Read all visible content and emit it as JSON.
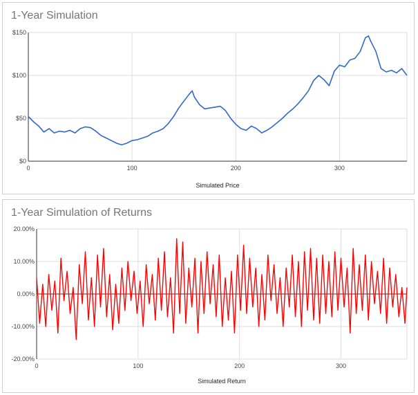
{
  "chart_data": [
    {
      "type": "line",
      "title": "1-Year Simulation",
      "xlabel": "Simulated Price",
      "ylabel": "",
      "xlim": [
        0,
        365
      ],
      "ylim": [
        0,
        150
      ],
      "x_ticks": [
        0,
        100,
        200,
        300
      ],
      "x_tick_labels": [
        "0",
        "100",
        "200",
        "300"
      ],
      "y_ticks": [
        0,
        50,
        100,
        150
      ],
      "y_tick_labels": [
        "$0",
        "$50",
        "$100",
        "$150"
      ],
      "grid": true,
      "series": [
        {
          "name": "Simulated Price",
          "color": "#3366cc",
          "x": [
            0,
            5,
            10,
            15,
            20,
            25,
            30,
            35,
            40,
            45,
            50,
            55,
            60,
            65,
            70,
            75,
            80,
            85,
            90,
            95,
            100,
            105,
            110,
            115,
            120,
            125,
            130,
            135,
            140,
            145,
            150,
            155,
            158,
            160,
            165,
            170,
            175,
            180,
            185,
            190,
            195,
            200,
            205,
            210,
            215,
            220,
            225,
            230,
            235,
            240,
            245,
            250,
            255,
            260,
            265,
            270,
            275,
            280,
            285,
            290,
            295,
            300,
            305,
            310,
            315,
            320,
            325,
            328,
            330,
            335,
            340,
            345,
            350,
            355,
            360,
            365
          ],
          "values": [
            52,
            46,
            41,
            34,
            38,
            33,
            35,
            34,
            36,
            33,
            38,
            40,
            39,
            35,
            30,
            27,
            24,
            21,
            19,
            21,
            24,
            25,
            27,
            29,
            33,
            35,
            38,
            44,
            52,
            62,
            70,
            78,
            82,
            75,
            66,
            61,
            62,
            63,
            64,
            59,
            50,
            43,
            38,
            36,
            41,
            38,
            33,
            36,
            40,
            45,
            50,
            56,
            61,
            67,
            74,
            82,
            94,
            100,
            95,
            88,
            105,
            112,
            110,
            118,
            120,
            128,
            144,
            146,
            140,
            128,
            108,
            104,
            106,
            103,
            108,
            100
          ]
        }
      ]
    },
    {
      "type": "line",
      "title": "1-Year Simulation of Returns",
      "xlabel": "Simulated Return",
      "ylabel": "",
      "xlim": [
        0,
        365
      ],
      "ylim": [
        -0.2,
        0.2
      ],
      "x_ticks": [
        0,
        100,
        200,
        300
      ],
      "x_tick_labels": [
        "0",
        "100",
        "200",
        "300"
      ],
      "y_ticks": [
        -0.2,
        -0.1,
        0,
        0.1,
        0.2
      ],
      "y_tick_labels": [
        "-20.00%",
        "-10.00%",
        "0.00%",
        "10.00%",
        "20.00%"
      ],
      "grid": true,
      "series": [
        {
          "name": "Simulated Return",
          "color": "#ff0000",
          "x": [
            0,
            3,
            6,
            9,
            12,
            15,
            18,
            21,
            24,
            27,
            30,
            33,
            36,
            39,
            42,
            45,
            48,
            51,
            54,
            57,
            60,
            63,
            66,
            69,
            72,
            75,
            78,
            81,
            84,
            87,
            90,
            93,
            96,
            99,
            102,
            105,
            108,
            111,
            114,
            117,
            120,
            123,
            126,
            129,
            132,
            135,
            138,
            141,
            144,
            147,
            150,
            153,
            156,
            159,
            162,
            165,
            168,
            171,
            174,
            177,
            180,
            183,
            186,
            189,
            192,
            195,
            198,
            201,
            204,
            207,
            210,
            213,
            216,
            219,
            222,
            225,
            228,
            231,
            234,
            237,
            240,
            243,
            246,
            249,
            252,
            255,
            258,
            261,
            264,
            267,
            270,
            273,
            276,
            279,
            282,
            285,
            288,
            291,
            294,
            297,
            300,
            303,
            306,
            309,
            312,
            315,
            318,
            321,
            324,
            327,
            330,
            333,
            336,
            339,
            342,
            345,
            348,
            351,
            354,
            357,
            360,
            363,
            365
          ],
          "values": [
            0.05,
            -0.09,
            0.03,
            -0.1,
            0.06,
            -0.05,
            0.04,
            -0.12,
            0.11,
            -0.02,
            0.07,
            -0.06,
            0.02,
            -0.14,
            0.09,
            -0.03,
            0.13,
            -0.08,
            0.05,
            -0.1,
            0.12,
            -0.04,
            0.14,
            -0.07,
            0.06,
            -0.11,
            0.03,
            -0.09,
            0.08,
            -0.05,
            0.1,
            -0.02,
            0.07,
            -0.06,
            0.04,
            -0.1,
            0.09,
            -0.03,
            0.06,
            -0.08,
            0.11,
            -0.05,
            0.13,
            -0.07,
            0.05,
            -0.12,
            0.17,
            -0.06,
            0.16,
            -0.09,
            0.08,
            -0.04,
            0.11,
            -0.12,
            0.1,
            -0.06,
            0.13,
            -0.03,
            0.09,
            -0.07,
            0.12,
            -0.1,
            0.05,
            -0.08,
            0.07,
            -0.12,
            0.12,
            -0.05,
            0.15,
            -0.06,
            0.11,
            -0.04,
            0.08,
            -0.1,
            0.06,
            -0.08,
            0.12,
            -0.02,
            0.09,
            -0.06,
            0.05,
            -0.1,
            0.08,
            -0.04,
            0.12,
            -0.07,
            0.1,
            -0.1,
            0.13,
            -0.05,
            0.14,
            -0.08,
            0.11,
            -0.09,
            0.12,
            -0.06,
            0.1,
            -0.07,
            0.13,
            -0.05,
            0.11,
            -0.04,
            0.08,
            -0.12,
            0.14,
            -0.06,
            0.09,
            -0.05,
            0.12,
            -0.08,
            0.1,
            -0.03,
            0.07,
            -0.06,
            0.11,
            -0.09,
            0.08,
            -0.04,
            0.06,
            -0.07,
            0.02,
            -0.09,
            0.02
          ]
        }
      ]
    }
  ]
}
